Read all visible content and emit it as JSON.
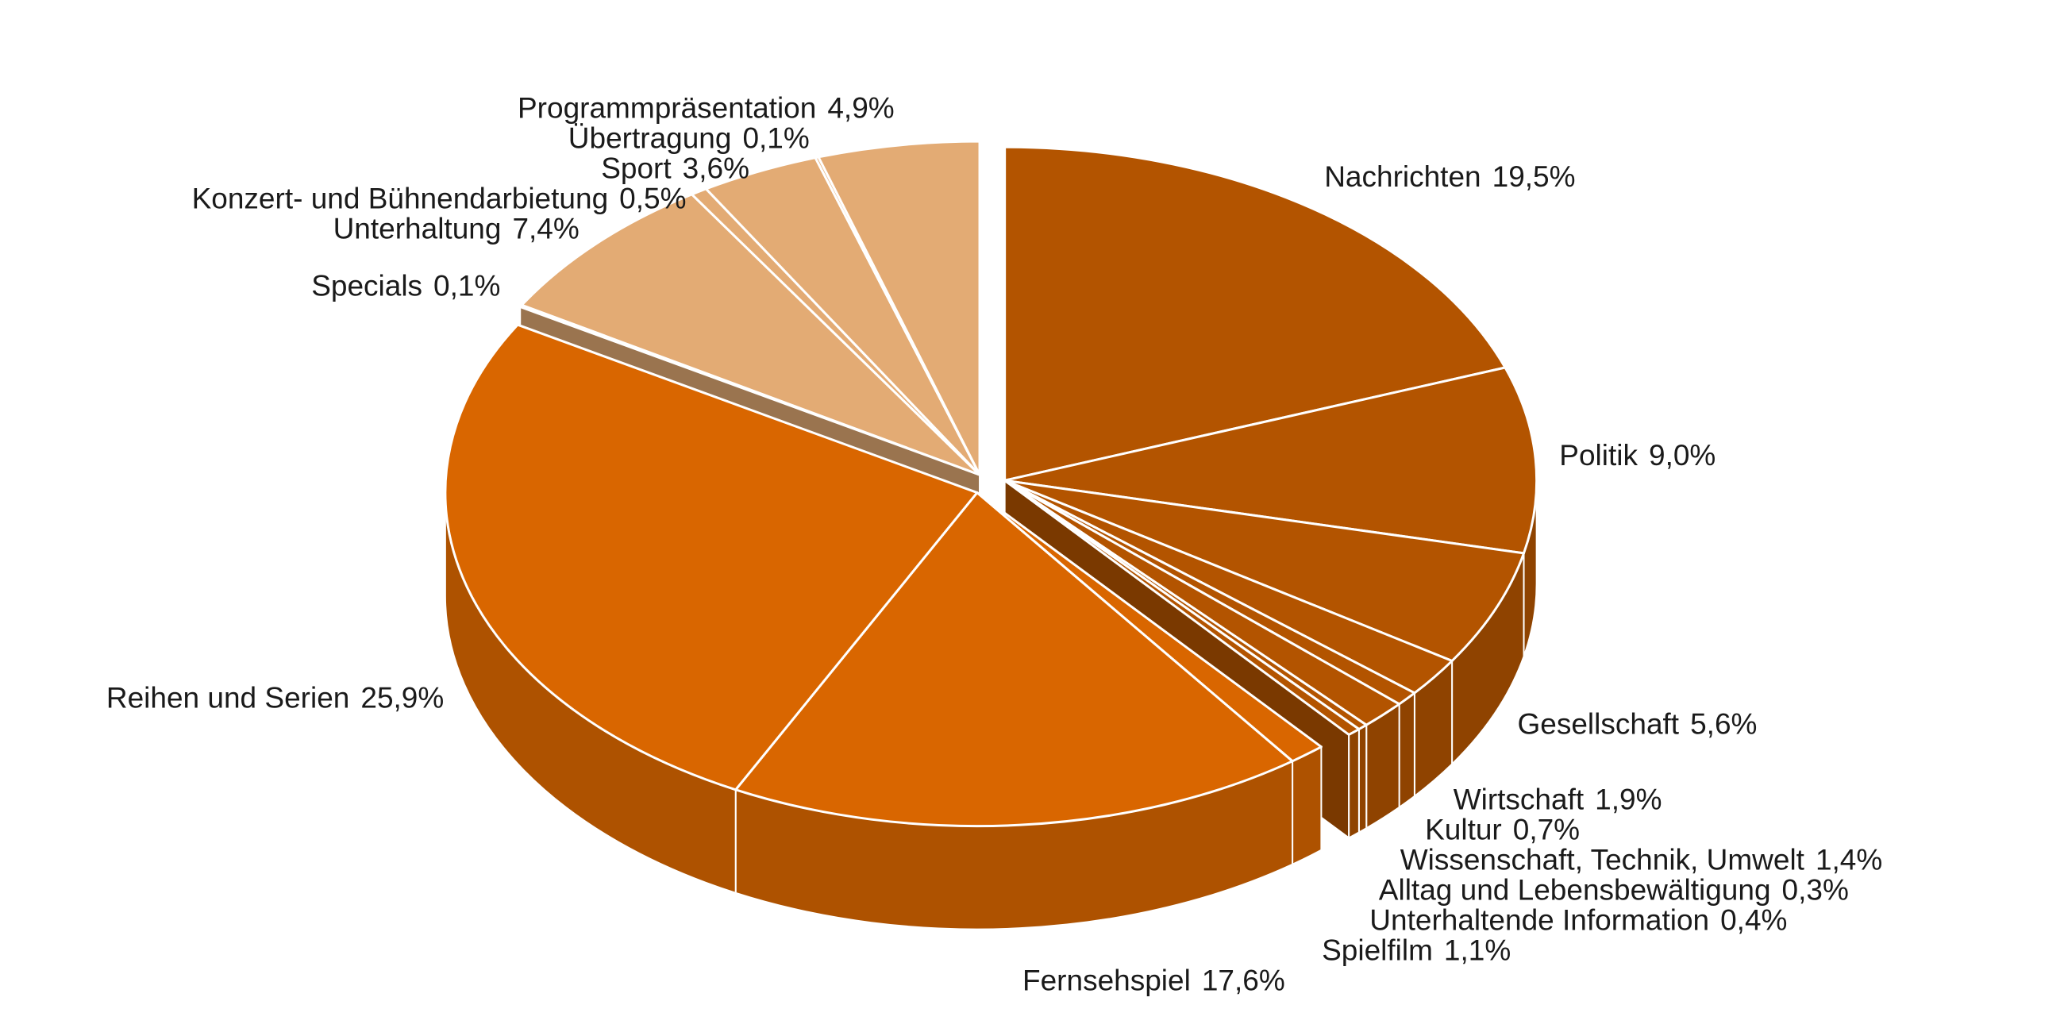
{
  "chart_data": {
    "type": "pie",
    "categories": [
      "Nachrichten",
      "Politik",
      "Gesellschaft",
      "Wirtschaft",
      "Kultur",
      "Wissenschaft, Technik, Umwelt",
      "Alltag und Lebensbewältigung",
      "Unterhaltende Information",
      "Spielfilm",
      "Fernsehspiel",
      "Reihen und Serien",
      "Specials",
      "Unterhaltung",
      "Konzert- und Bühnendarbietung",
      "Sport",
      "Übertragung",
      "Programmpräsentation"
    ],
    "values": [
      19.5,
      9.0,
      5.6,
      1.9,
      0.7,
      1.4,
      0.3,
      0.4,
      1.1,
      17.6,
      25.9,
      0.1,
      7.4,
      0.5,
      3.6,
      0.1,
      4.9
    ],
    "value_labels": [
      "19,5%",
      "9,0%",
      "5,6%",
      "1,9%",
      "0,7%",
      "1,4%",
      "0,3%",
      "0,4%",
      "1,1%",
      "17,6%",
      "25,9%",
      "0,1%",
      "7,4%",
      "0,5%",
      "3,6%",
      "0,1%",
      "4,9%"
    ],
    "colors": [
      "#b35400",
      "#b35400",
      "#b35400",
      "#b35400",
      "#b35400",
      "#b35400",
      "#b35400",
      "#b35400",
      "#d96600",
      "#d96600",
      "#d96600",
      "#e3ab74",
      "#e3ab74",
      "#e3ab74",
      "#e3ab74",
      "#e3ab74",
      "#e3ab74"
    ]
  }
}
